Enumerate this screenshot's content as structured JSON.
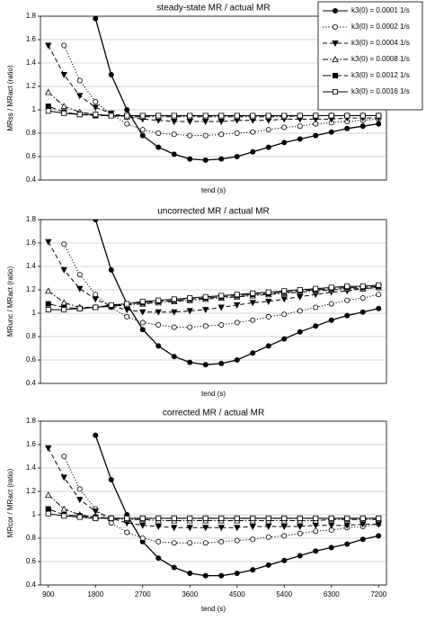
{
  "chart_data": [
    {
      "type": "line",
      "title": "steady-state MR / actual MR",
      "ylabel": "MRss / MRact (ratio)",
      "xlabel": "tend (s)",
      "x": [
        900,
        1200,
        1500,
        1800,
        2100,
        2400,
        2700,
        3000,
        3300,
        3600,
        3900,
        4200,
        4500,
        4800,
        5100,
        5400,
        5700,
        6000,
        6300,
        6600,
        6900,
        7200
      ],
      "xlim": [
        750,
        7350
      ],
      "ylim": [
        0.4,
        1.8
      ],
      "yticks": [
        0.4,
        0.6,
        0.8,
        1,
        1.2,
        1.4,
        1.6,
        1.8
      ],
      "grid": true,
      "legend": "upper right",
      "series": [
        {
          "name": "k3(0) = 0.0001 1/s",
          "color": "#000000",
          "marker": "circle",
          "filled": true,
          "linestyle": "solid",
          "values": [
            null,
            null,
            null,
            1.78,
            1.3,
            1.0,
            0.78,
            0.68,
            0.62,
            0.58,
            0.57,
            0.58,
            0.6,
            0.64,
            0.68,
            0.72,
            0.75,
            0.78,
            0.81,
            0.84,
            0.86,
            0.88
          ]
        },
        {
          "name": "k3(0) = 0.0002 1/s",
          "color": "#000000",
          "marker": "circle",
          "filled": false,
          "linestyle": "dotted",
          "values": [
            null,
            1.55,
            1.25,
            1.07,
            0.96,
            0.88,
            0.83,
            0.8,
            0.79,
            0.78,
            0.78,
            0.79,
            0.8,
            0.81,
            0.83,
            0.85,
            0.86,
            0.88,
            0.89,
            0.9,
            0.91,
            0.92
          ]
        },
        {
          "name": "k3(0) = 0.0004 1/s",
          "color": "#000000",
          "marker": "triangle-down",
          "filled": true,
          "linestyle": "dashed",
          "values": [
            1.55,
            1.3,
            1.12,
            1.02,
            0.97,
            0.94,
            0.92,
            0.91,
            0.9,
            0.9,
            0.9,
            0.9,
            0.91,
            0.91,
            0.91,
            0.92,
            0.92,
            0.92,
            0.92,
            0.93,
            0.93,
            0.93
          ]
        },
        {
          "name": "k3(0) = 0.0008 1/s",
          "color": "#000000",
          "marker": "triangle-up",
          "filled": false,
          "linestyle": "dashdot",
          "values": [
            1.15,
            1.03,
            0.98,
            0.96,
            0.95,
            0.94,
            0.94,
            0.94,
            0.94,
            0.94,
            0.94,
            0.94,
            0.94,
            0.94,
            0.94,
            0.94,
            0.95,
            0.95,
            0.95,
            0.95,
            0.95,
            0.95
          ]
        },
        {
          "name": "k3(0) = 0.0012 1/s",
          "color": "#000000",
          "marker": "square",
          "filled": true,
          "linestyle": "longdash",
          "values": [
            1.03,
            0.98,
            0.96,
            0.95,
            0.95,
            0.95,
            0.95,
            0.95,
            0.95,
            0.95,
            0.95,
            0.95,
            0.95,
            0.95,
            0.95,
            0.95,
            0.95,
            0.95,
            0.95,
            0.95,
            0.95,
            0.95
          ]
        },
        {
          "name": "k3(0) = 0.0016 1/s",
          "color": "#000000",
          "marker": "square",
          "filled": false,
          "linestyle": "solid",
          "values": [
            0.99,
            0.97,
            0.96,
            0.96,
            0.95,
            0.95,
            0.95,
            0.95,
            0.95,
            0.95,
            0.95,
            0.95,
            0.95,
            0.95,
            0.95,
            0.95,
            0.95,
            0.95,
            0.95,
            0.95,
            0.95,
            0.95
          ]
        }
      ]
    },
    {
      "type": "line",
      "title": "uncorrected MR / actual MR",
      "ylabel": "MRunc / MRact (ratio)",
      "xlabel": "tend (s)",
      "x": [
        900,
        1200,
        1500,
        1800,
        2100,
        2400,
        2700,
        3000,
        3300,
        3600,
        3900,
        4200,
        4500,
        4800,
        5100,
        5400,
        5700,
        6000,
        6300,
        6600,
        6900,
        7200
      ],
      "xlim": [
        750,
        7350
      ],
      "ylim": [
        0.4,
        1.8
      ],
      "yticks": [
        0.4,
        0.6,
        0.8,
        1,
        1.2,
        1.4,
        1.6,
        1.8
      ],
      "grid": true,
      "series": [
        {
          "color": "#000000",
          "marker": "circle",
          "filled": true,
          "linestyle": "solid",
          "values": [
            null,
            null,
            null,
            1.8,
            1.37,
            1.08,
            0.86,
            0.72,
            0.63,
            0.58,
            0.56,
            0.57,
            0.6,
            0.66,
            0.72,
            0.78,
            0.84,
            0.89,
            0.94,
            0.98,
            1.01,
            1.04
          ]
        },
        {
          "color": "#000000",
          "marker": "circle",
          "filled": false,
          "linestyle": "dotted",
          "values": [
            null,
            1.59,
            1.33,
            1.16,
            1.05,
            0.97,
            0.92,
            0.9,
            0.88,
            0.88,
            0.89,
            0.9,
            0.92,
            0.94,
            0.97,
            0.99,
            1.02,
            1.05,
            1.08,
            1.11,
            1.13,
            1.16
          ]
        },
        {
          "color": "#000000",
          "marker": "triangle-down",
          "filled": true,
          "linestyle": "dashed",
          "values": [
            1.61,
            1.37,
            1.21,
            1.12,
            1.06,
            1.03,
            1.01,
            1.01,
            1.01,
            1.02,
            1.03,
            1.05,
            1.07,
            1.09,
            1.1,
            1.12,
            1.14,
            1.16,
            1.18,
            1.19,
            1.21,
            1.22
          ]
        },
        {
          "color": "#000000",
          "marker": "triangle-up",
          "filled": false,
          "linestyle": "dashdot",
          "values": [
            1.19,
            1.09,
            1.05,
            1.05,
            1.06,
            1.07,
            1.08,
            1.09,
            1.1,
            1.11,
            1.12,
            1.13,
            1.14,
            1.15,
            1.16,
            1.17,
            1.18,
            1.19,
            1.2,
            1.21,
            1.21,
            1.22
          ]
        },
        {
          "color": "#000000",
          "marker": "square",
          "filled": true,
          "linestyle": "longdash",
          "values": [
            1.08,
            1.05,
            1.04,
            1.05,
            1.06,
            1.08,
            1.09,
            1.1,
            1.11,
            1.12,
            1.13,
            1.14,
            1.15,
            1.16,
            1.17,
            1.18,
            1.19,
            1.2,
            1.21,
            1.22,
            1.22,
            1.23
          ]
        },
        {
          "color": "#000000",
          "marker": "square",
          "filled": false,
          "linestyle": "solid",
          "values": [
            1.03,
            1.03,
            1.04,
            1.05,
            1.07,
            1.08,
            1.1,
            1.11,
            1.12,
            1.13,
            1.14,
            1.15,
            1.16,
            1.17,
            1.18,
            1.19,
            1.2,
            1.21,
            1.22,
            1.23,
            1.23,
            1.24
          ]
        }
      ]
    },
    {
      "type": "line",
      "title": "corrected MR / actual MR",
      "ylabel": "MRcor / MRact (ratio)",
      "xlabel": "tend (s)",
      "x": [
        900,
        1200,
        1500,
        1800,
        2100,
        2400,
        2700,
        3000,
        3300,
        3600,
        3900,
        4200,
        4500,
        4800,
        5100,
        5400,
        5700,
        6000,
        6300,
        6600,
        6900,
        7200
      ],
      "xlim": [
        750,
        7350
      ],
      "ylim": [
        0.4,
        1.8
      ],
      "yticks": [
        0.4,
        0.6,
        0.8,
        1,
        1.2,
        1.4,
        1.6,
        1.8
      ],
      "xticks": [
        900,
        1800,
        2700,
        3600,
        4500,
        5400,
        6300,
        7200
      ],
      "grid": true,
      "series": [
        {
          "color": "#000000",
          "marker": "circle",
          "filled": true,
          "linestyle": "solid",
          "values": [
            null,
            null,
            null,
            1.68,
            1.3,
            1.0,
            0.77,
            0.63,
            0.55,
            0.5,
            0.48,
            0.48,
            0.5,
            0.53,
            0.57,
            0.61,
            0.65,
            0.69,
            0.72,
            0.75,
            0.79,
            0.82
          ]
        },
        {
          "color": "#000000",
          "marker": "circle",
          "filled": false,
          "linestyle": "dotted",
          "values": [
            null,
            1.5,
            1.22,
            1.05,
            0.93,
            0.85,
            0.8,
            0.77,
            0.76,
            0.76,
            0.76,
            0.77,
            0.78,
            0.79,
            0.81,
            0.82,
            0.84,
            0.86,
            0.87,
            0.89,
            0.9,
            0.92
          ]
        },
        {
          "color": "#000000",
          "marker": "triangle-down",
          "filled": true,
          "linestyle": "dashed",
          "values": [
            1.57,
            1.32,
            1.13,
            1.03,
            0.97,
            0.93,
            0.91,
            0.9,
            0.89,
            0.89,
            0.89,
            0.89,
            0.89,
            0.9,
            0.9,
            0.9,
            0.9,
            0.91,
            0.91,
            0.91,
            0.92,
            0.92
          ]
        },
        {
          "color": "#000000",
          "marker": "triangle-up",
          "filled": false,
          "linestyle": "dashdot",
          "values": [
            1.17,
            1.05,
            1.0,
            0.98,
            0.97,
            0.96,
            0.96,
            0.95,
            0.95,
            0.95,
            0.95,
            0.95,
            0.95,
            0.95,
            0.95,
            0.95,
            0.95,
            0.95,
            0.96,
            0.96,
            0.96,
            0.96
          ]
        },
        {
          "color": "#000000",
          "marker": "square",
          "filled": true,
          "linestyle": "longdash",
          "values": [
            1.05,
            1.0,
            0.99,
            0.98,
            0.97,
            0.97,
            0.97,
            0.97,
            0.97,
            0.97,
            0.97,
            0.97,
            0.97,
            0.97,
            0.97,
            0.97,
            0.97,
            0.97,
            0.97,
            0.97,
            0.97,
            0.97
          ]
        },
        {
          "color": "#000000",
          "marker": "square",
          "filled": false,
          "linestyle": "solid",
          "values": [
            1.01,
            0.99,
            0.98,
            0.97,
            0.97,
            0.97,
            0.97,
            0.97,
            0.97,
            0.97,
            0.97,
            0.97,
            0.97,
            0.97,
            0.97,
            0.97,
            0.97,
            0.97,
            0.97,
            0.97,
            0.97,
            0.97
          ]
        }
      ]
    }
  ]
}
